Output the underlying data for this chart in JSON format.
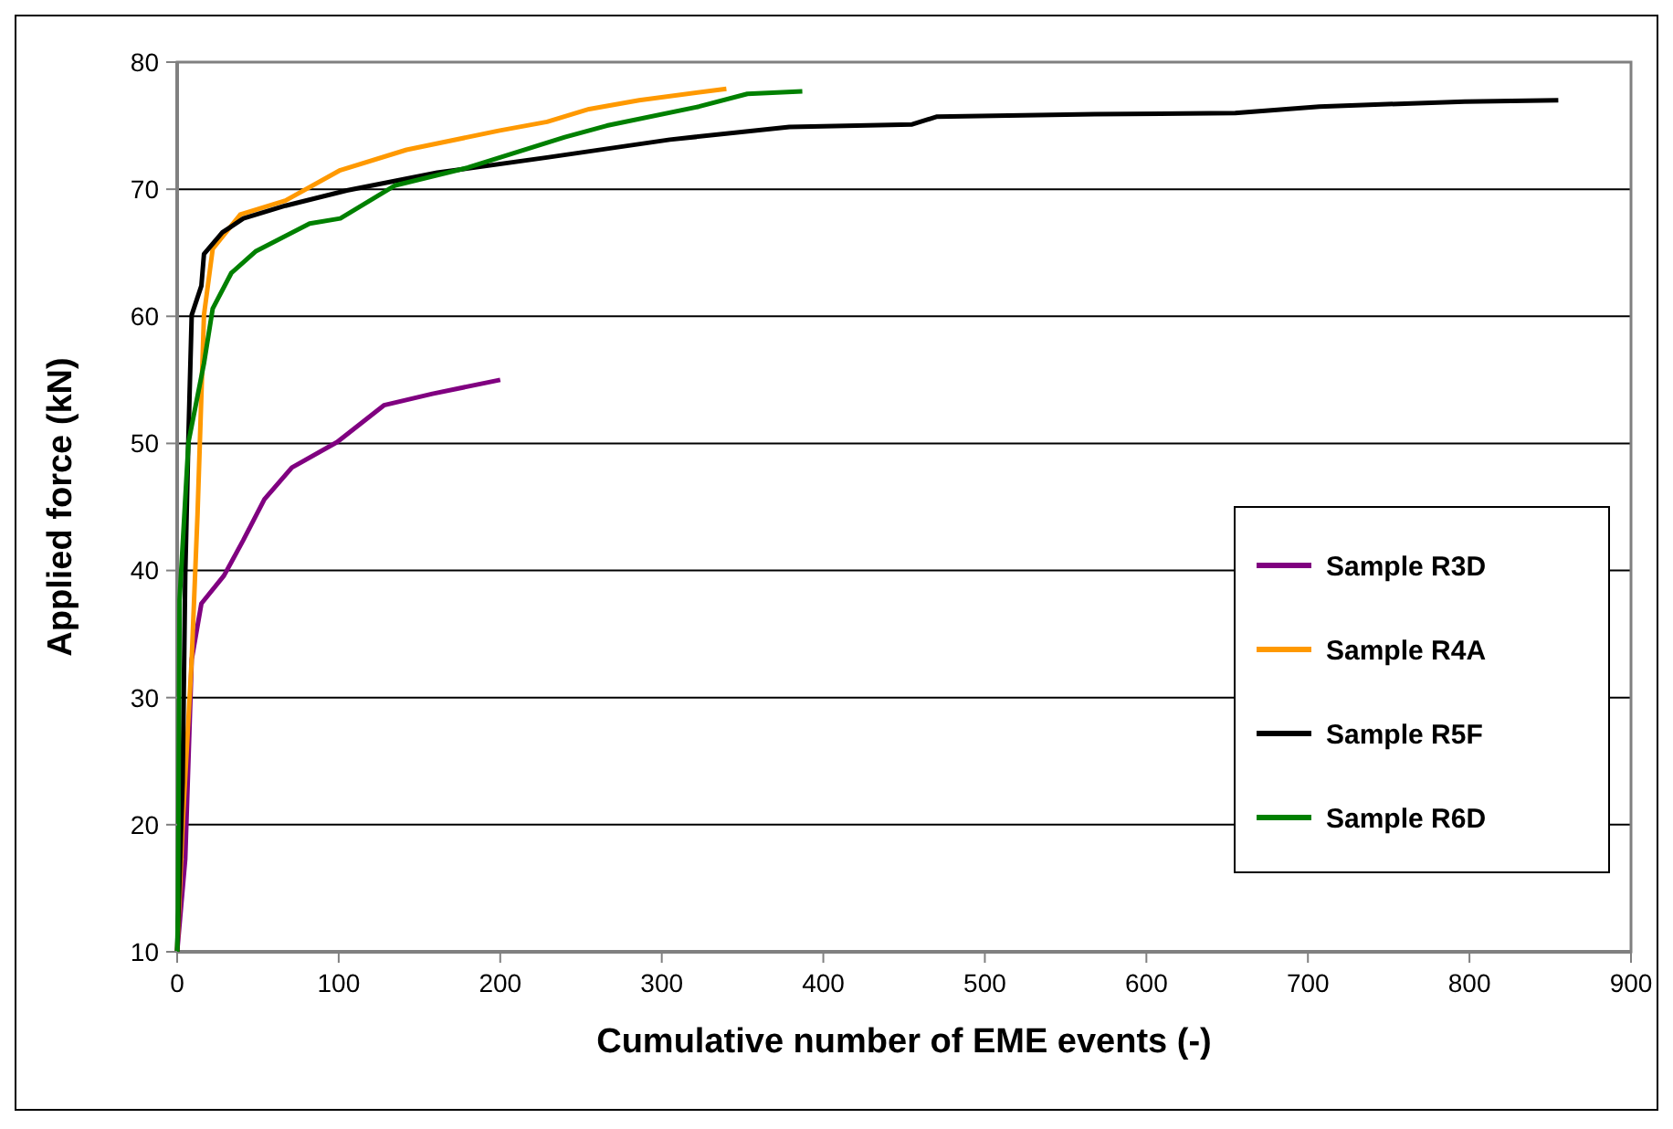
{
  "chart_data": {
    "type": "line",
    "xlabel": "Cumulative number of EME events (-)",
    "ylabel": "Applied force (kN)",
    "xlim": [
      0,
      900
    ],
    "ylim": [
      10,
      80
    ],
    "xticks": [
      0,
      100,
      200,
      300,
      400,
      500,
      600,
      700,
      800,
      900
    ],
    "yticks": [
      10,
      20,
      30,
      40,
      50,
      60,
      70,
      80
    ],
    "grid": "y",
    "legend": "right",
    "marker": "none",
    "line_style": "solid",
    "series": [
      {
        "name": "Sample R3D",
        "color": "#800080",
        "x": [
          0,
          5,
          9,
          15,
          29,
          41,
          54,
          71,
          99,
          128,
          158,
          200
        ],
        "values": [
          10,
          17.3,
          33,
          37.4,
          39.6,
          42.4,
          45.6,
          48.1,
          50.1,
          53,
          53.9,
          55
        ]
      },
      {
        "name": "Sample R4A",
        "color": "#ff9900",
        "x": [
          0,
          3.4,
          9,
          12.6,
          16.6,
          22,
          39,
          67,
          101,
          142,
          199,
          229,
          255,
          286,
          340
        ],
        "values": [
          10,
          20,
          33,
          44.4,
          60.1,
          65.3,
          68,
          69.1,
          71.5,
          73.1,
          74.6,
          75.3,
          76.3,
          77,
          77.9
        ]
      },
      {
        "name": "Sample R5F",
        "color": "#000000",
        "x": [
          0,
          3.4,
          5,
          7,
          9,
          15,
          16.6,
          28,
          41,
          67,
          105,
          161,
          229,
          305,
          379,
          455,
          470,
          568,
          655,
          707,
          797,
          855
        ],
        "values": [
          10,
          23.4,
          39.6,
          50.6,
          60.1,
          62.4,
          64.9,
          66.6,
          67.7,
          68.7,
          69.9,
          71.3,
          72.5,
          73.9,
          74.9,
          75.1,
          75.7,
          75.9,
          76,
          76.5,
          76.9,
          77
        ]
      },
      {
        "name": "Sample R6D",
        "color": "#008000",
        "x": [
          0,
          0.5,
          1.5,
          7,
          16.6,
          22,
          33.5,
          48.5,
          82,
          101,
          135,
          180,
          240,
          266,
          323,
          353,
          387
        ],
        "values": [
          10,
          13,
          37.7,
          50.1,
          56.3,
          60.6,
          63.4,
          65.1,
          67.3,
          67.7,
          70.3,
          71.7,
          74.1,
          75,
          76.5,
          77.5,
          77.7
        ]
      }
    ]
  }
}
